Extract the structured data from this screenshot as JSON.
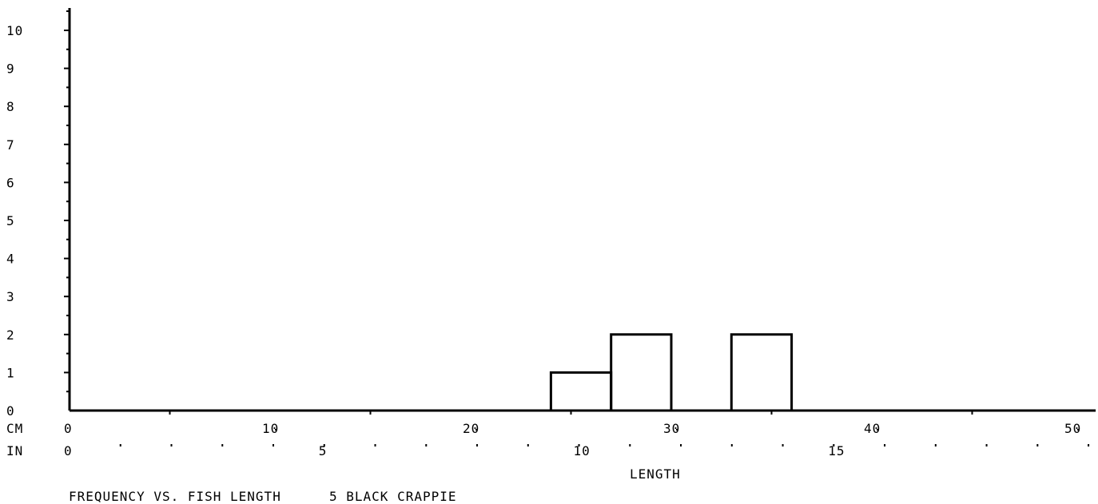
{
  "chart_data": {
    "type": "bar",
    "title": "FREQUENCY VS. FISH LENGTH",
    "subtitle": "5 BLACK CRAPPIE",
    "xlabel": "LENGTH",
    "ylabel": "",
    "y_ticks": [
      "0",
      "1",
      "2",
      "3",
      "4",
      "5",
      "6",
      "7",
      "8",
      "9",
      "10"
    ],
    "ylim": [
      0,
      10
    ],
    "cm_axis": {
      "unit_label": "CM",
      "range": [
        0,
        51
      ],
      "tick_labels": [
        "0",
        "10",
        "20",
        "30",
        "40",
        "50"
      ],
      "tick_values": [
        0,
        10,
        20,
        30,
        40,
        50
      ]
    },
    "in_axis": {
      "unit_label": "IN",
      "tick_labels": [
        "0",
        "5",
        "10",
        "15"
      ],
      "tick_values": [
        0,
        5,
        10,
        15
      ]
    },
    "bins": [
      {
        "x_start": 24,
        "x_end": 27,
        "value": 1
      },
      {
        "x_start": 27,
        "x_end": 30,
        "value": 2
      },
      {
        "x_start": 33,
        "x_end": 36,
        "value": 2
      }
    ],
    "grid": false,
    "legend": "none"
  }
}
